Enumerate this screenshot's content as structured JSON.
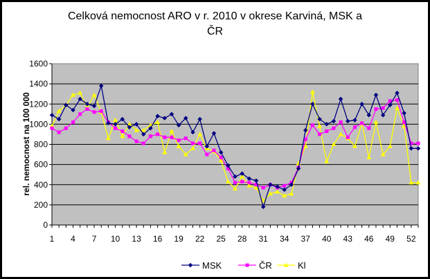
{
  "chart_data": {
    "type": "line",
    "title_line1": "Celková nemocnost  ARO v r. 2010 v okrese Karviná, MSK a",
    "title_line2": "ČR",
    "ylabel": "rel. nemocnost na 100 000",
    "xlabel": "",
    "ylim": [
      0,
      1600
    ],
    "yticks": [
      0,
      200,
      400,
      600,
      800,
      1000,
      1200,
      1400,
      1600
    ],
    "xticks": [
      1,
      4,
      7,
      10,
      13,
      16,
      19,
      22,
      25,
      28,
      31,
      34,
      37,
      40,
      43,
      46,
      49,
      52
    ],
    "x_range": [
      1,
      53
    ],
    "grid": true,
    "plot_background": "#c0c0c0",
    "legend_position": "bottom",
    "series": [
      {
        "name": "MSK",
        "color": "#000080",
        "marker": "diamond",
        "x": [
          1,
          2,
          3,
          4,
          5,
          6,
          7,
          8,
          9,
          10,
          11,
          12,
          13,
          14,
          15,
          16,
          17,
          18,
          19,
          20,
          21,
          22,
          23,
          24,
          25,
          26,
          27,
          28,
          29,
          30,
          31,
          32,
          33,
          34,
          35,
          36,
          37,
          38,
          39,
          40,
          41,
          42,
          43,
          44,
          45,
          46,
          47,
          48,
          49,
          50,
          51,
          52,
          53
        ],
        "values": [
          1090,
          1050,
          1190,
          1140,
          1250,
          1200,
          1180,
          1380,
          1010,
          1000,
          1050,
          970,
          1000,
          900,
          960,
          1080,
          1060,
          1100,
          990,
          1060,
          920,
          1050,
          780,
          910,
          720,
          590,
          480,
          510,
          460,
          440,
          180,
          400,
          380,
          350,
          400,
          560,
          940,
          1200,
          1050,
          1000,
          1030,
          1250,
          1030,
          1040,
          1200,
          1090,
          1290,
          1090,
          1190,
          1310,
          1110,
          760,
          760
        ]
      },
      {
        "name": "ČR",
        "color": "#ff00ff",
        "marker": "square",
        "x": [
          1,
          2,
          3,
          4,
          5,
          6,
          7,
          8,
          9,
          10,
          11,
          12,
          13,
          14,
          15,
          16,
          17,
          18,
          19,
          20,
          21,
          22,
          23,
          24,
          25,
          26,
          27,
          28,
          29,
          30,
          31,
          32,
          33,
          34,
          35,
          36,
          37,
          38,
          39,
          40,
          41,
          42,
          43,
          44,
          45,
          46,
          47,
          48,
          49,
          50,
          51,
          52,
          53
        ],
        "values": [
          960,
          920,
          960,
          1020,
          1100,
          1150,
          1120,
          1130,
          1020,
          960,
          930,
          880,
          830,
          810,
          880,
          900,
          870,
          870,
          840,
          860,
          810,
          810,
          700,
          740,
          670,
          560,
          420,
          430,
          420,
          400,
          370,
          400,
          370,
          390,
          420,
          570,
          850,
          990,
          900,
          930,
          960,
          1020,
          870,
          970,
          1010,
          960,
          1150,
          1160,
          1230,
          1240,
          1020,
          810,
          810
        ]
      },
      {
        "name": "Kl",
        "color": "#ffff00",
        "marker": "triangle",
        "x": [
          1,
          2,
          3,
          4,
          5,
          6,
          7,
          8,
          9,
          10,
          11,
          12,
          13,
          14,
          15,
          16,
          17,
          18,
          19,
          20,
          21,
          22,
          23,
          24,
          25,
          26,
          27,
          28,
          29,
          30,
          31,
          32,
          33,
          34,
          35,
          36,
          37,
          38,
          39,
          40,
          41,
          42,
          43,
          44,
          45,
          46,
          47,
          48,
          49,
          50,
          51,
          52,
          53
        ],
        "values": [
          980,
          1130,
          1190,
          1290,
          1310,
          1160,
          1290,
          1120,
          860,
          1040,
          880,
          1000,
          940,
          940,
          990,
          1020,
          720,
          930,
          780,
          700,
          760,
          900,
          760,
          730,
          640,
          430,
          360,
          480,
          390,
          370,
          240,
          310,
          330,
          290,
          310,
          610,
          780,
          1320,
          980,
          630,
          800,
          900,
          860,
          780,
          1010,
          670,
          1020,
          700,
          780,
          1160,
          980,
          420,
          420
        ]
      }
    ]
  }
}
